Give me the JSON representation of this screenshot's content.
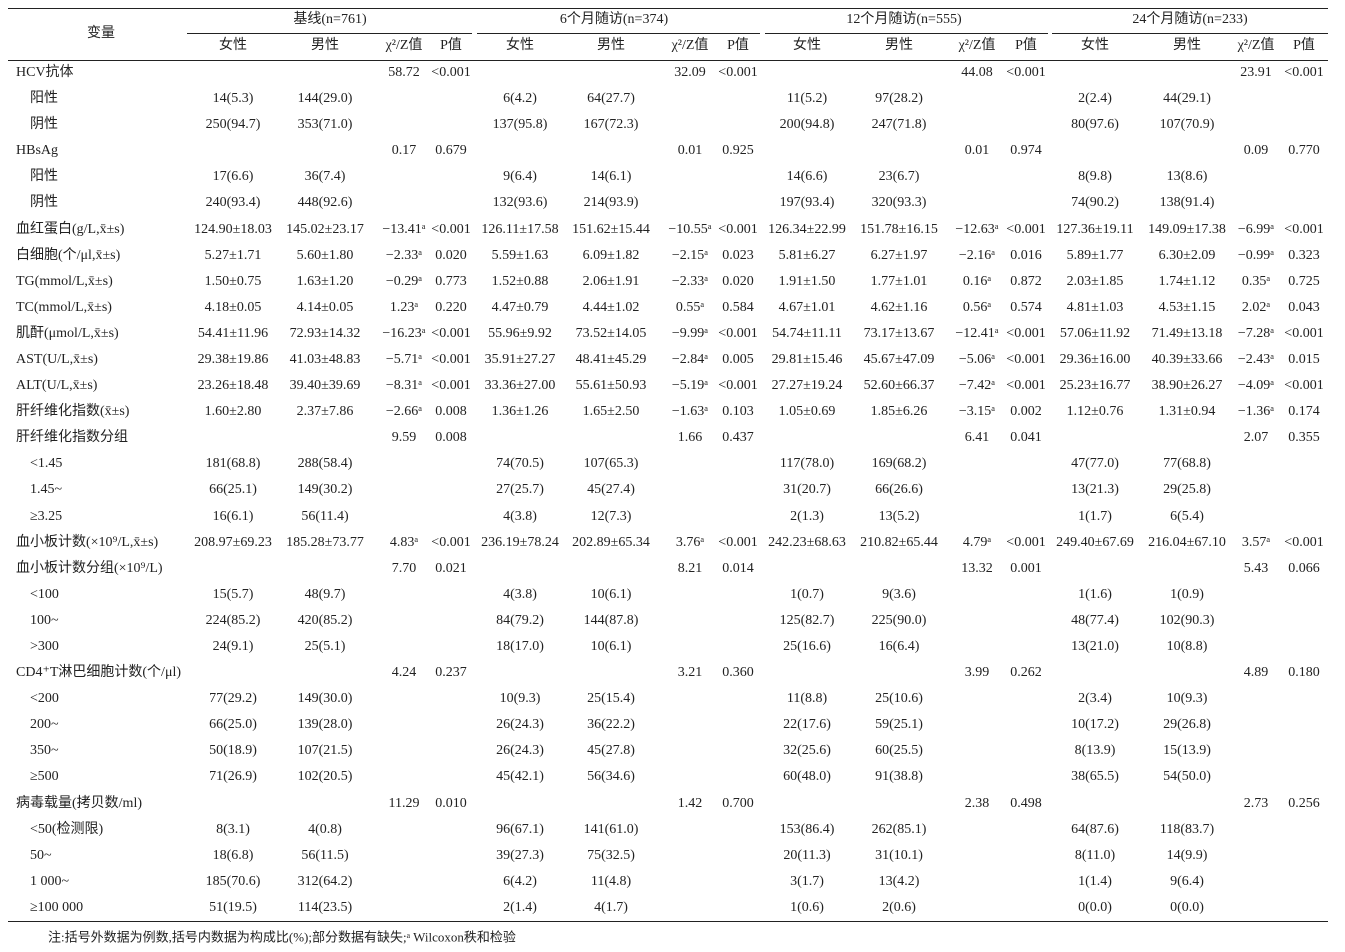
{
  "table": {
    "header": {
      "variable": "变量",
      "groups": [
        "基线(n=761)",
        "6个月随访(n=374)",
        "12个月随访(n=555)",
        "24个月随访(n=233)"
      ],
      "subheaders": [
        "女性",
        "男性",
        "χ²/Z值",
        "P值"
      ]
    },
    "rows": [
      {
        "label": "HCV抗体",
        "cells": [
          null,
          null,
          "58.72",
          "<0.001",
          null,
          null,
          "32.09",
          "<0.001",
          null,
          null,
          "44.08",
          "<0.001",
          null,
          null,
          "23.91",
          "<0.001"
        ]
      },
      {
        "label": "阳性",
        "cells": [
          "14(5.3)",
          "144(29.0)",
          null,
          null,
          "6(4.2)",
          "64(27.7)",
          null,
          null,
          "11(5.2)",
          "97(28.2)",
          null,
          null,
          "2(2.4)",
          "44(29.1)",
          null,
          null
        ]
      },
      {
        "label": "阴性",
        "cells": [
          "250(94.7)",
          "353(71.0)",
          null,
          null,
          "137(95.8)",
          "167(72.3)",
          null,
          null,
          "200(94.8)",
          "247(71.8)",
          null,
          null,
          "80(97.6)",
          "107(70.9)",
          null,
          null
        ]
      },
      {
        "label": "HBsAg",
        "cells": [
          null,
          null,
          "0.17",
          "0.679",
          null,
          null,
          "0.01",
          "0.925",
          null,
          null,
          "0.01",
          "0.974",
          null,
          null,
          "0.09",
          "0.770"
        ]
      },
      {
        "label": "阳性",
        "cells": [
          "17(6.6)",
          "36(7.4)",
          null,
          null,
          "9(6.4)",
          "14(6.1)",
          null,
          null,
          "14(6.6)",
          "23(6.7)",
          null,
          null,
          "8(9.8)",
          "13(8.6)",
          null,
          null
        ]
      },
      {
        "label": "阴性",
        "cells": [
          "240(93.4)",
          "448(92.6)",
          null,
          null,
          "132(93.6)",
          "214(93.9)",
          null,
          null,
          "197(93.4)",
          "320(93.3)",
          null,
          null,
          "74(90.2)",
          "138(91.4)",
          null,
          null
        ]
      },
      {
        "label": "血红蛋白(g/L,x̄±s)",
        "cells": [
          "124.90±18.03",
          "145.02±23.17",
          "−13.41ᵃ",
          "<0.001",
          "126.11±17.58",
          "151.62±15.44",
          "−10.55ᵃ",
          "<0.001",
          "126.34±22.99",
          "151.78±16.15",
          "−12.63ᵃ",
          "<0.001",
          "127.36±19.11",
          "149.09±17.38",
          "−6.99ᵃ",
          "<0.001"
        ]
      },
      {
        "label": "白细胞(个/μl,x̄±s)",
        "cells": [
          "5.27±1.71",
          "5.60±1.80",
          "−2.33ᵃ",
          "0.020",
          "5.59±1.63",
          "6.09±1.82",
          "−2.15ᵃ",
          "0.023",
          "5.81±6.27",
          "6.27±1.97",
          "−2.16ᵃ",
          "0.016",
          "5.89±1.77",
          "6.30±2.09",
          "−0.99ᵃ",
          "0.323"
        ]
      },
      {
        "label": "TG(mmol/L,x̄±s)",
        "cells": [
          "1.50±0.75",
          "1.63±1.20",
          "−0.29ᵃ",
          "0.773",
          "1.52±0.88",
          "2.06±1.91",
          "−2.33ᵃ",
          "0.020",
          "1.91±1.50",
          "1.77±1.01",
          "0.16ᵃ",
          "0.872",
          "2.03±1.85",
          "1.74±1.12",
          "0.35ᵃ",
          "0.725"
        ]
      },
      {
        "label": "TC(mmol/L,x̄±s)",
        "cells": [
          "4.18±0.05",
          "4.14±0.05",
          "1.23ᵃ",
          "0.220",
          "4.47±0.79",
          "4.44±1.02",
          "0.55ᵃ",
          "0.584",
          "4.67±1.01",
          "4.62±1.16",
          "0.56ᵃ",
          "0.574",
          "4.81±1.03",
          "4.53±1.15",
          "2.02ᵃ",
          "0.043"
        ]
      },
      {
        "label": "肌酐(μmol/L,x̄±s)",
        "cells": [
          "54.41±11.96",
          "72.93±14.32",
          "−16.23ᵃ",
          "<0.001",
          "55.96±9.92",
          "73.52±14.05",
          "−9.99ᵃ",
          "<0.001",
          "54.74±11.11",
          "73.17±13.67",
          "−12.41ᵃ",
          "<0.001",
          "57.06±11.92",
          "71.49±13.18",
          "−7.28ᵃ",
          "<0.001"
        ]
      },
      {
        "label": "AST(U/L,x̄±s)",
        "cells": [
          "29.38±19.86",
          "41.03±48.83",
          "−5.71ᵃ",
          "<0.001",
          "35.91±27.27",
          "48.41±45.29",
          "−2.84ᵃ",
          "0.005",
          "29.81±15.46",
          "45.67±47.09",
          "−5.06ᵃ",
          "<0.001",
          "29.36±16.00",
          "40.39±33.66",
          "−2.43ᵃ",
          "0.015"
        ]
      },
      {
        "label": "ALT(U/L,x̄±s)",
        "cells": [
          "23.26±18.48",
          "39.40±39.69",
          "−8.31ᵃ",
          "<0.001",
          "33.36±27.00",
          "55.61±50.93",
          "−5.19ᵃ",
          "<0.001",
          "27.27±19.24",
          "52.60±66.37",
          "−7.42ᵃ",
          "<0.001",
          "25.23±16.77",
          "38.90±26.27",
          "−4.09ᵃ",
          "<0.001"
        ]
      },
      {
        "label": "肝纤维化指数(x̄±s)",
        "cells": [
          "1.60±2.80",
          "2.37±7.86",
          "−2.66ᵃ",
          "0.008",
          "1.36±1.26",
          "1.65±2.50",
          "−1.63ᵃ",
          "0.103",
          "1.05±0.69",
          "1.85±6.26",
          "−3.15ᵃ",
          "0.002",
          "1.12±0.76",
          "1.31±0.94",
          "−1.36ᵃ",
          "0.174"
        ]
      },
      {
        "label": "肝纤维化指数分组",
        "cells": [
          null,
          null,
          "9.59",
          "0.008",
          null,
          null,
          "1.66",
          "0.437",
          null,
          null,
          "6.41",
          "0.041",
          null,
          null,
          "2.07",
          "0.355"
        ]
      },
      {
        "label": "<1.45",
        "cells": [
          "181(68.8)",
          "288(58.4)",
          null,
          null,
          "74(70.5)",
          "107(65.3)",
          null,
          null,
          "117(78.0)",
          "169(68.2)",
          null,
          null,
          "47(77.0)",
          "77(68.8)",
          null,
          null
        ]
      },
      {
        "label": "1.45~",
        "cells": [
          "66(25.1)",
          "149(30.2)",
          null,
          null,
          "27(25.7)",
          "45(27.4)",
          null,
          null,
          "31(20.7)",
          "66(26.6)",
          null,
          null,
          "13(21.3)",
          "29(25.8)",
          null,
          null
        ]
      },
      {
        "label": "≥3.25",
        "cells": [
          "16(6.1)",
          "56(11.4)",
          null,
          null,
          "4(3.8)",
          "12(7.3)",
          null,
          null,
          "2(1.3)",
          "13(5.2)",
          null,
          null,
          "1(1.7)",
          "6(5.4)",
          null,
          null
        ]
      },
      {
        "label": "血小板计数(×10⁹/L,x̄±s)",
        "cells": [
          "208.97±69.23",
          "185.28±73.77",
          "4.83ᵃ",
          "<0.001",
          "236.19±78.24",
          "202.89±65.34",
          "3.76ᵃ",
          "<0.001",
          "242.23±68.63",
          "210.82±65.44",
          "4.79ᵃ",
          "<0.001",
          "249.40±67.69",
          "216.04±67.10",
          "3.57ᵃ",
          "<0.001"
        ]
      },
      {
        "label": "血小板计数分组(×10⁹/L)",
        "cells": [
          null,
          null,
          "7.70",
          "0.021",
          null,
          null,
          "8.21",
          "0.014",
          null,
          null,
          "13.32",
          "0.001",
          null,
          null,
          "5.43",
          "0.066"
        ]
      },
      {
        "label": "<100",
        "cells": [
          "15(5.7)",
          "48(9.7)",
          null,
          null,
          "4(3.8)",
          "10(6.1)",
          null,
          null,
          "1(0.7)",
          "9(3.6)",
          null,
          null,
          "1(1.6)",
          "1(0.9)",
          null,
          null
        ]
      },
      {
        "label": "100~",
        "cells": [
          "224(85.2)",
          "420(85.2)",
          null,
          null,
          "84(79.2)",
          "144(87.8)",
          null,
          null,
          "125(82.7)",
          "225(90.0)",
          null,
          null,
          "48(77.4)",
          "102(90.3)",
          null,
          null
        ]
      },
      {
        "label": ">300",
        "cells": [
          "24(9.1)",
          "25(5.1)",
          null,
          null,
          "18(17.0)",
          "10(6.1)",
          null,
          null,
          "25(16.6)",
          "16(6.4)",
          null,
          null,
          "13(21.0)",
          "10(8.8)",
          null,
          null
        ]
      },
      {
        "label": "CD4⁺T淋巴细胞计数(个/μl)",
        "cells": [
          null,
          null,
          "4.24",
          "0.237",
          null,
          null,
          "3.21",
          "0.360",
          null,
          null,
          "3.99",
          "0.262",
          null,
          null,
          "4.89",
          "0.180"
        ]
      },
      {
        "label": "<200",
        "cells": [
          "77(29.2)",
          "149(30.0)",
          null,
          null,
          "10(9.3)",
          "25(15.4)",
          null,
          null,
          "11(8.8)",
          "25(10.6)",
          null,
          null,
          "2(3.4)",
          "10(9.3)",
          null,
          null
        ]
      },
      {
        "label": "200~",
        "cells": [
          "66(25.0)",
          "139(28.0)",
          null,
          null,
          "26(24.3)",
          "36(22.2)",
          null,
          null,
          "22(17.6)",
          "59(25.1)",
          null,
          null,
          "10(17.2)",
          "29(26.8)",
          null,
          null
        ]
      },
      {
        "label": "350~",
        "cells": [
          "50(18.9)",
          "107(21.5)",
          null,
          null,
          "26(24.3)",
          "45(27.8)",
          null,
          null,
          "32(25.6)",
          "60(25.5)",
          null,
          null,
          "8(13.9)",
          "15(13.9)",
          null,
          null
        ]
      },
      {
        "label": "≥500",
        "cells": [
          "71(26.9)",
          "102(20.5)",
          null,
          null,
          "45(42.1)",
          "56(34.6)",
          null,
          null,
          "60(48.0)",
          "91(38.8)",
          null,
          null,
          "38(65.5)",
          "54(50.0)",
          null,
          null
        ]
      },
      {
        "label": "病毒载量(拷贝数/ml)",
        "cells": [
          null,
          null,
          "11.29",
          "0.010",
          null,
          null,
          "1.42",
          "0.700",
          null,
          null,
          "2.38",
          "0.498",
          null,
          null,
          "2.73",
          "0.256"
        ]
      },
      {
        "label": "<50(检测限)",
        "cells": [
          "8(3.1)",
          "4(0.8)",
          null,
          null,
          "96(67.1)",
          "141(61.0)",
          null,
          null,
          "153(86.4)",
          "262(85.1)",
          null,
          null,
          "64(87.6)",
          "118(83.7)",
          null,
          null
        ]
      },
      {
        "label": "50~",
        "cells": [
          "18(6.8)",
          "56(11.5)",
          null,
          null,
          "39(27.3)",
          "75(32.5)",
          null,
          null,
          "20(11.3)",
          "31(10.1)",
          null,
          null,
          "8(11.0)",
          "14(9.9)",
          null,
          null
        ]
      },
      {
        "label": "1 000~",
        "cells": [
          "185(70.6)",
          "312(64.2)",
          null,
          null,
          "6(4.2)",
          "11(4.8)",
          null,
          null,
          "3(1.7)",
          "13(4.2)",
          null,
          null,
          "1(1.4)",
          "9(6.4)",
          null,
          null
        ]
      },
      {
        "label": "≥100 000",
        "cells": [
          "51(19.5)",
          "114(23.5)",
          null,
          null,
          "2(1.4)",
          "4(1.7)",
          null,
          null,
          "1(0.6)",
          "2(0.6)",
          null,
          null,
          "0(0.0)",
          "0(0.0)",
          null,
          null
        ]
      }
    ],
    "note": "注:括号外数据为例数,括号内数据为构成比(%);部分数据有缺失;ᵃ Wilcoxon秩和检验"
  }
}
